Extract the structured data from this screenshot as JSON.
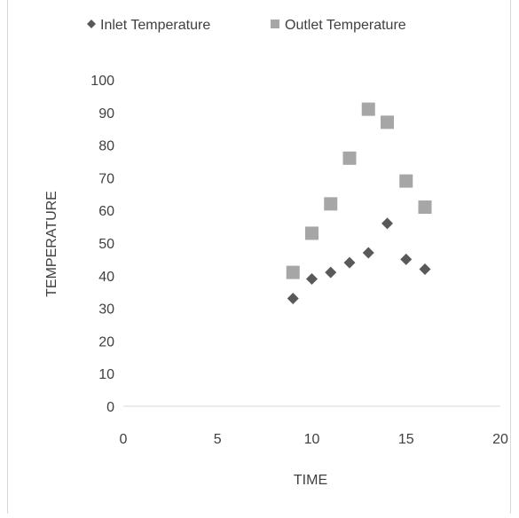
{
  "chart_data": {
    "type": "scatter",
    "title": "",
    "xlabel": "TIME",
    "ylabel": "TEMPERATURE",
    "xlim": [
      0,
      20
    ],
    "ylim": [
      0,
      100
    ],
    "xticks": [
      0,
      5,
      10,
      15,
      20
    ],
    "yticks": [
      0,
      10,
      20,
      30,
      40,
      50,
      60,
      70,
      80,
      90,
      100
    ],
    "grid": false,
    "legend_position": "top",
    "series": [
      {
        "name": "Inlet Temperature",
        "marker": "diamond",
        "color": "#595959",
        "x": [
          9,
          10,
          11,
          12,
          13,
          14,
          15,
          16
        ],
        "y": [
          33,
          39,
          41,
          44,
          47,
          56,
          45,
          42
        ]
      },
      {
        "name": "Outlet Temperature",
        "marker": "square",
        "color": "#a6a6a6",
        "x": [
          9,
          10,
          11,
          12,
          13,
          14,
          15,
          16
        ],
        "y": [
          41,
          53,
          62,
          76,
          91,
          87,
          69,
          61
        ]
      }
    ]
  }
}
